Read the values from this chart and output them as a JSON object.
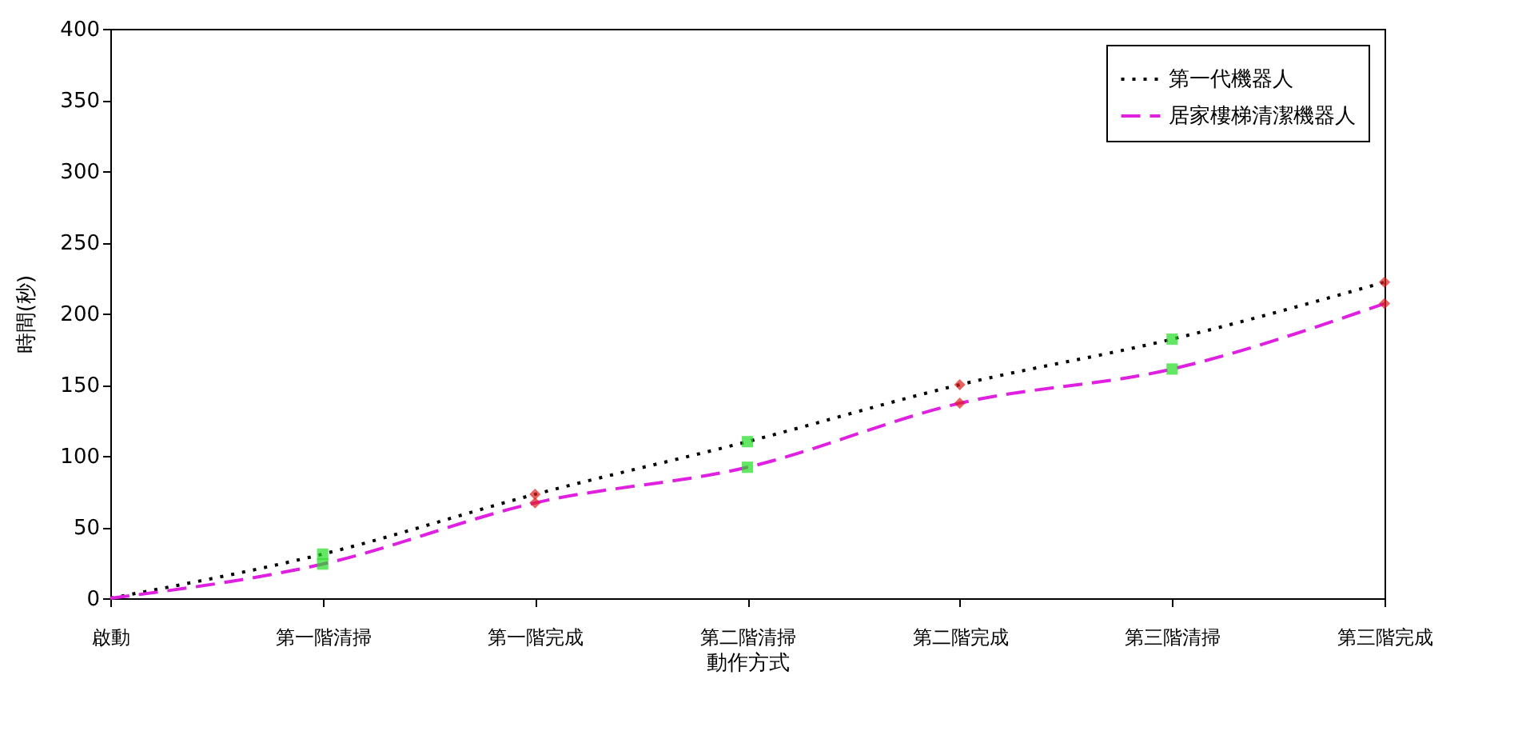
{
  "chart_data": {
    "type": "line",
    "xlabel": "動作方式",
    "ylabel": "時間(秒)",
    "categories": [
      "啟動",
      "第一階清掃",
      "第一階完成",
      "第二階清掃",
      "第二階完成",
      "第三階清掃",
      "第三階完成"
    ],
    "ylim": [
      0,
      400
    ],
    "yticks": [
      0,
      50,
      100,
      150,
      200,
      250,
      300,
      350,
      400
    ],
    "grid": false,
    "legend": "top right",
    "series": [
      {
        "name": "第一代機器人",
        "color": "#000000",
        "line_style": "dotted",
        "marker": "none",
        "values": [
          0,
          31,
          73,
          110,
          150,
          182,
          222
        ]
      },
      {
        "name": "居家樓梯清潔機器人",
        "color": "#e020e0",
        "line_style": "dashed",
        "marker": "none",
        "values": [
          0,
          24,
          67,
          92,
          137,
          161,
          207
        ]
      },
      {
        "type": "scatter",
        "color": "#22dd22",
        "marker": "square",
        "x": [
          "第一階清掃",
          "第二階清掃",
          "第三階清掃"
        ],
        "values": [
          31,
          110,
          182
        ]
      },
      {
        "type": "scatter",
        "color": "#22dd22",
        "marker": "square",
        "x": [
          "第一階清掃",
          "第二階清掃",
          "第三階清掃"
        ],
        "values": [
          24,
          92,
          161
        ]
      },
      {
        "type": "scatter",
        "color": "#e02020",
        "marker": "diamond",
        "x": [
          "第一階完成",
          "第二階完成",
          "第三階完成"
        ],
        "values": [
          73,
          150,
          222
        ]
      },
      {
        "type": "scatter",
        "color": "#e02020",
        "marker": "diamond",
        "x": [
          "第一階完成",
          "第二階完成",
          "第三階完成"
        ],
        "values": [
          67,
          137,
          207
        ]
      }
    ]
  }
}
